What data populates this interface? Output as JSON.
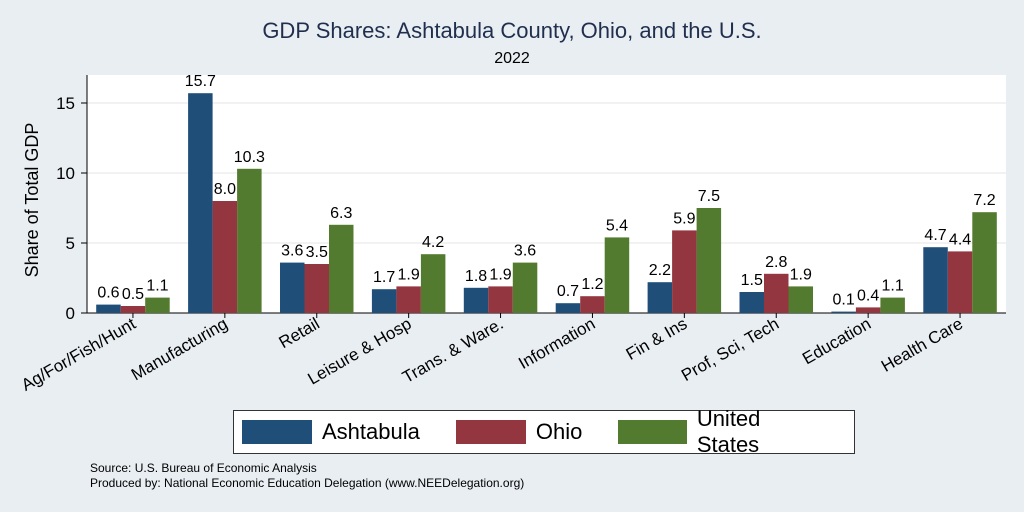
{
  "header": {
    "title": "GDP Shares: Ashtabula County, Ohio, and the U.S.",
    "subtitle": "2022"
  },
  "footer": {
    "source": "Source: U.S. Bureau of Economic Analysis",
    "produced": "Produced by: National Economic Education Delegation (www.NEEDelegation.org)"
  },
  "chart_data": {
    "type": "bar",
    "title": "GDP Shares: Ashtabula County, Ohio, and the U.S.",
    "subtitle": "2022",
    "xlabel": "",
    "ylabel": "Share of Total GDP",
    "ylim": [
      0,
      17
    ],
    "yticks": [
      0,
      5,
      10,
      15
    ],
    "grid": true,
    "legend_position": "bottom",
    "categories": [
      "Ag/For/Fish/Hunt",
      "Manufacturing",
      "Retail",
      "Leisure & Hosp",
      "Trans. & Ware.",
      "Information",
      "Fin & Ins",
      "Prof, Sci, Tech",
      "Education",
      "Health Care"
    ],
    "series": [
      {
        "name": "Ashtabula",
        "color": "#1f4e79",
        "values": [
          0.6,
          15.7,
          3.6,
          1.7,
          1.8,
          0.7,
          2.2,
          1.5,
          0.1,
          4.7
        ]
      },
      {
        "name": "Ohio",
        "color": "#93363f",
        "values": [
          0.5,
          8.0,
          3.5,
          1.9,
          1.9,
          1.2,
          5.9,
          2.8,
          0.4,
          4.4
        ]
      },
      {
        "name": "United States",
        "color": "#537b2f",
        "values": [
          1.1,
          10.3,
          6.3,
          4.2,
          3.6,
          5.4,
          7.5,
          1.9,
          1.1,
          7.2
        ]
      }
    ]
  }
}
